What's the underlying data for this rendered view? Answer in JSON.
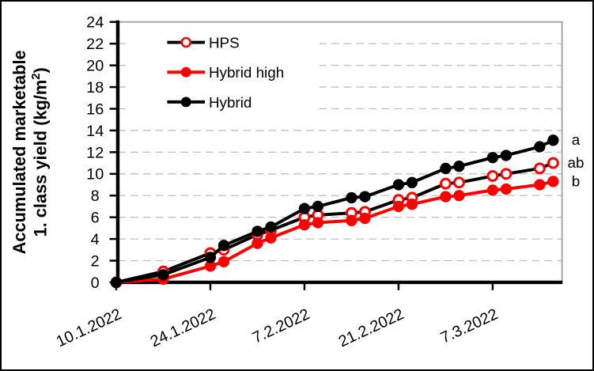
{
  "chart_data": {
    "type": "line",
    "title": "",
    "y_axis": {
      "label_line1": "Accumulated marketable",
      "label_line2_pre": "1. class yield (kg/m",
      "label_line2_sup": "2",
      "label_line2_post": ")",
      "min": 0,
      "max": 24,
      "tick_labels": [
        "0",
        "2",
        "4",
        "6",
        "8",
        "10",
        "12",
        "14",
        "16",
        "18",
        "20",
        "22",
        "24"
      ],
      "tick_values": [
        0,
        2,
        4,
        6,
        8,
        10,
        12,
        14,
        16,
        18,
        20,
        22,
        24
      ]
    },
    "x_axis": {
      "tick_labels": [
        "10.1.2022",
        "24.1.2022",
        "7.2.2022",
        "21.2.2022",
        "7.3.2022"
      ],
      "tick_day_offsets": [
        0,
        14,
        28,
        42,
        56
      ],
      "days_per_tick": 14
    },
    "grid": {
      "horizontal": true,
      "style": "dashed",
      "color": "#bfbfbf"
    },
    "legend": {
      "position": "top-left",
      "items": [
        "HPS",
        "Hybrid high",
        "Hybrid"
      ]
    },
    "point_dates": [
      "10.1.2022",
      "17.1.2022",
      "24.1.2022",
      "26.1.2022",
      "31.1.2022",
      "2.2.2022",
      "7.2.2022",
      "9.2.2022",
      "14.2.2022",
      "16.2.2022",
      "21.2.2022",
      "23.2.2022",
      "28.2.2022",
      "2.3.2022",
      "7.3.2022",
      "9.3.2022",
      "14.3.2022",
      "16.3.2022"
    ],
    "point_day_offsets": [
      0,
      7,
      14,
      16,
      21,
      23,
      28,
      30,
      35,
      37,
      42,
      44,
      49,
      51,
      56,
      58,
      63,
      65
    ],
    "series": [
      {
        "name": "HPS",
        "line_color": "#000000",
        "marker_style": "open",
        "marker_stroke": "#ff0000",
        "marker_fill": "#ffffff",
        "sig_label": "ab",
        "values": [
          0,
          1.0,
          2.7,
          3.0,
          4.4,
          4.8,
          6.0,
          6.2,
          6.4,
          6.5,
          7.6,
          7.8,
          9.1,
          9.2,
          9.8,
          10.0,
          10.5,
          11.0
        ]
      },
      {
        "name": "Hybrid high",
        "line_color": "#ff0000",
        "marker_style": "filled",
        "marker_stroke": "#ff0000",
        "marker_fill": "#ff0000",
        "sig_label": "b",
        "values": [
          0,
          0.3,
          1.5,
          1.9,
          3.6,
          4.1,
          5.3,
          5.5,
          5.7,
          5.9,
          7.0,
          7.2,
          7.9,
          8.0,
          8.5,
          8.6,
          9.0,
          9.3
        ]
      },
      {
        "name": "Hybrid",
        "line_color": "#000000",
        "marker_style": "filled",
        "marker_stroke": "#000000",
        "marker_fill": "#000000",
        "sig_label": "a",
        "values": [
          0,
          0.7,
          2.3,
          3.4,
          4.7,
          5.1,
          6.8,
          7.0,
          7.8,
          7.9,
          9.0,
          9.2,
          10.5,
          10.7,
          11.5,
          11.7,
          12.5,
          13.1
        ]
      }
    ],
    "colors": {
      "axis": "#000000",
      "plot_border": "#a6a6a6",
      "gridline": "#bfbfbf",
      "red": "#ff0000",
      "black": "#000000",
      "background": "#ffffff"
    }
  }
}
